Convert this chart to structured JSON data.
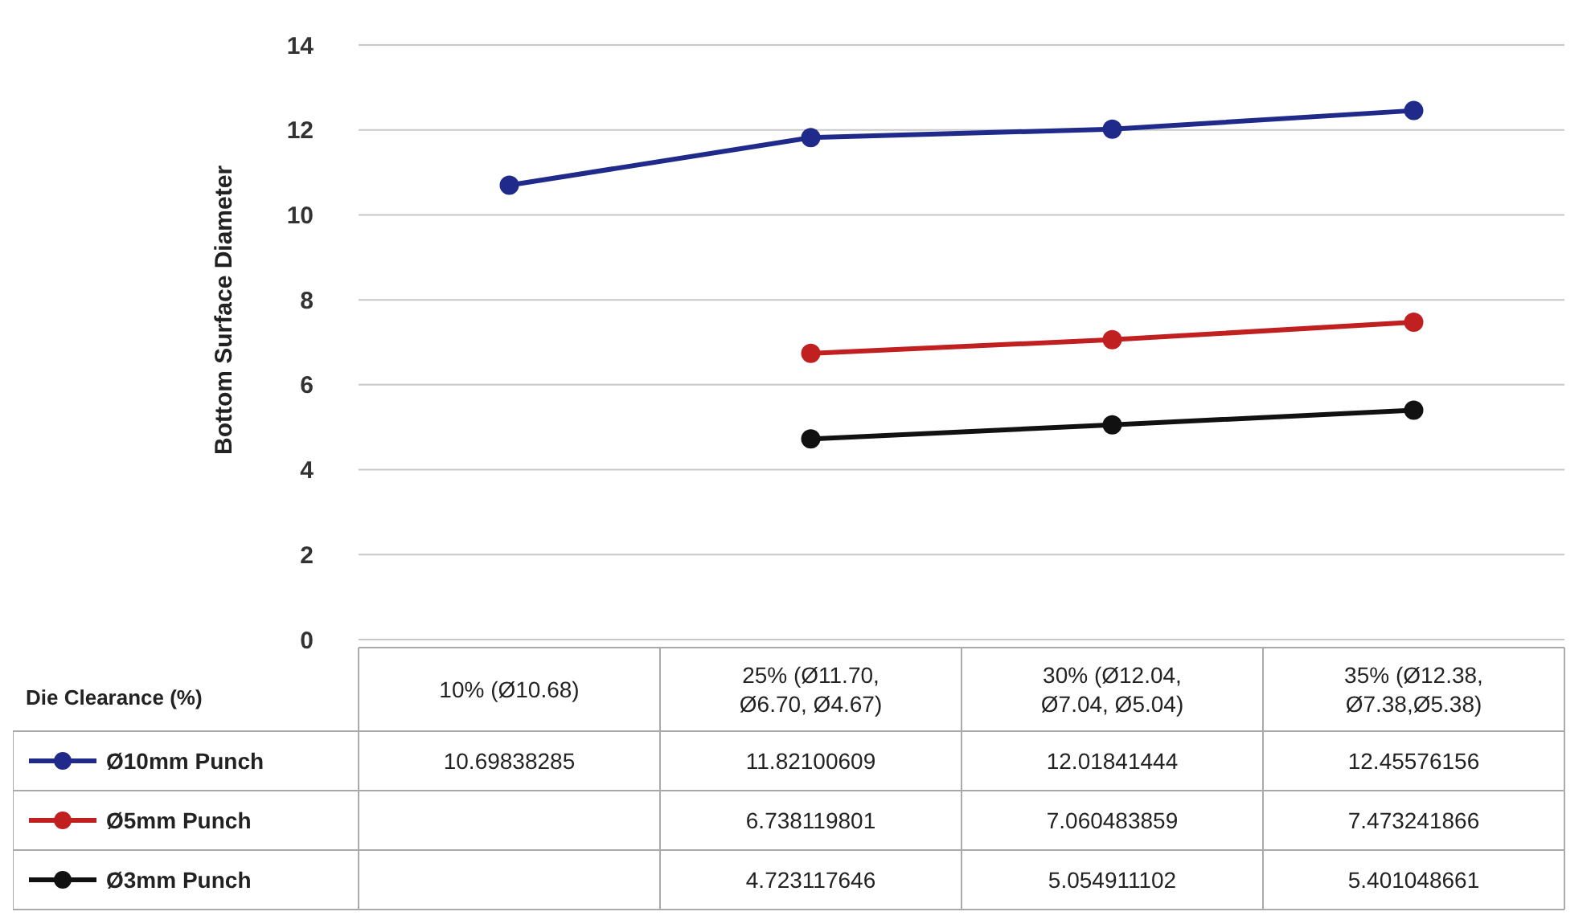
{
  "chart_data": {
    "type": "line",
    "xlabel": "Die Clearance (%)",
    "ylabel": "Bottom Surface Diameter",
    "categories": [
      "10% (Ø10.68)",
      "25% (Ø11.70, Ø6.70, Ø4.67)",
      "30% (Ø12.04, Ø7.04, Ø5.04)",
      "35% (Ø12.38, Ø7.38,Ø5.38)"
    ],
    "series": [
      {
        "name": "Ø10mm Punch",
        "color": "#1f2a8a",
        "values": [
          10.69838285,
          11.82100609,
          12.01841444,
          12.45576156
        ]
      },
      {
        "name": "Ø5mm Punch",
        "color": "#c0201f",
        "values": [
          null,
          6.738119801,
          7.060483859,
          7.473241866
        ]
      },
      {
        "name": "Ø3mm Punch",
        "color": "#111111",
        "values": [
          null,
          4.723117646,
          5.054911102,
          5.401048661
        ]
      }
    ],
    "ylim": [
      0,
      14
    ],
    "yticks": [
      0,
      2,
      4,
      6,
      8,
      10,
      12,
      14
    ],
    "grid": "y",
    "marker": "circle",
    "line_style": "solid",
    "legend": "bottom",
    "data_labels": true
  }
}
